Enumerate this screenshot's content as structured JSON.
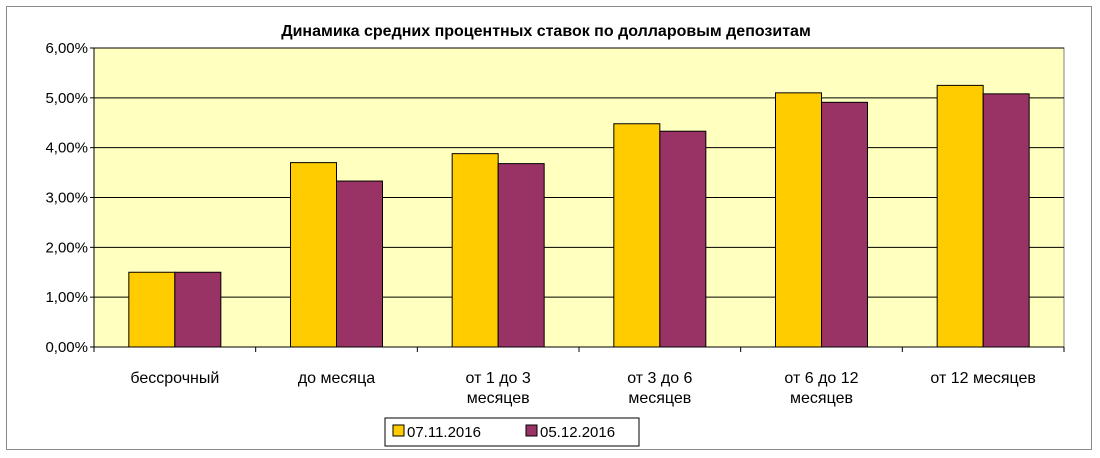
{
  "chart_data": {
    "type": "bar",
    "title": "Динамика средних процентных ставок по долларовым депозитам",
    "categories": [
      [
        "бессрочный"
      ],
      [
        "до месяца"
      ],
      [
        "от 1 до 3",
        "месяцев"
      ],
      [
        "от 3 до 6",
        "месяцев"
      ],
      [
        "от 6 до 12",
        "месяцев"
      ],
      [
        "от 12 месяцев"
      ]
    ],
    "series": [
      {
        "name": "07.11.2016",
        "color": "#FFCC00",
        "values": [
          1.5,
          3.7,
          3.88,
          4.48,
          5.1,
          5.25
        ]
      },
      {
        "name": "05.12.2016",
        "color": "#993366",
        "values": [
          1.5,
          3.33,
          3.68,
          4.33,
          4.91,
          5.08
        ]
      }
    ],
    "y_ticks": [
      "0,00%",
      "1,00%",
      "2,00%",
      "3,00%",
      "4,00%",
      "5,00%",
      "6,00%"
    ],
    "ylim": [
      0,
      6
    ],
    "grid": true,
    "plot_background": "#FFFFC0",
    "legend_position": "bottom"
  }
}
